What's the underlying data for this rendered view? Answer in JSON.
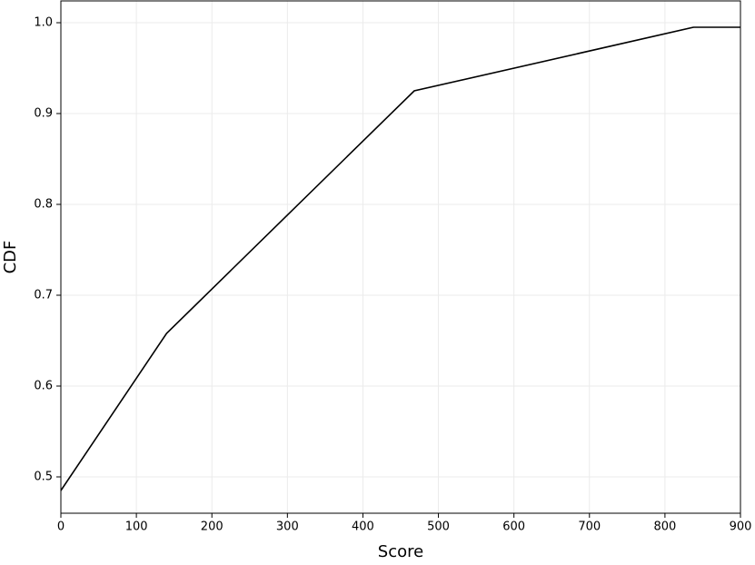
{
  "chart_data": {
    "type": "line",
    "x_label": "Score",
    "y_label": "CDF",
    "x": [
      0,
      140,
      468,
      838,
      900
    ],
    "series": [
      {
        "color": "#000000",
        "values": [
          0.485,
          0.658,
          0.925,
          0.995,
          0.995
        ]
      }
    ],
    "xlim": [
      0,
      900
    ],
    "ylim": [
      0.46,
      1.024
    ],
    "xticks": [
      0,
      100,
      200,
      300,
      400,
      500,
      600,
      700,
      800,
      900
    ],
    "yticks": [
      0.5,
      0.6,
      0.7,
      0.8,
      0.9,
      {
        "value": 1,
        "label": "1.0"
      }
    ],
    "grid": true
  }
}
